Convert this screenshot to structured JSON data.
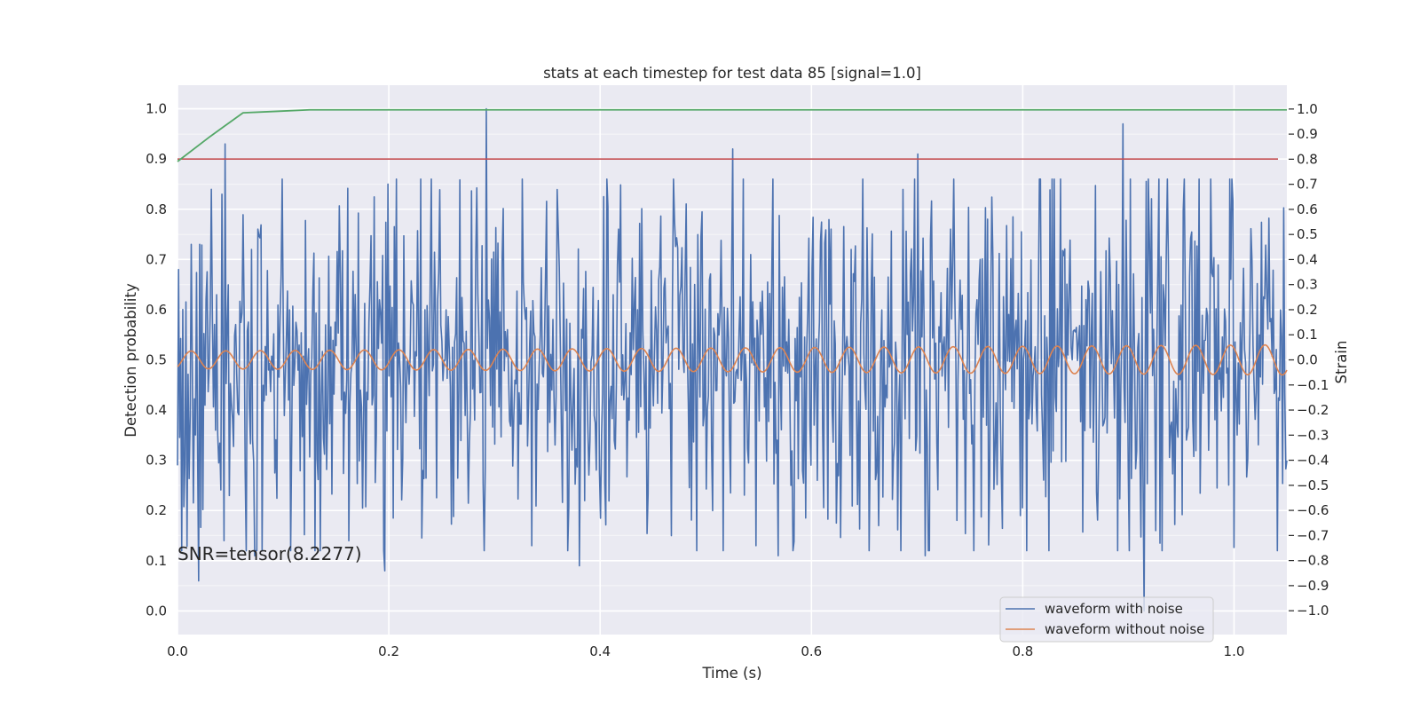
{
  "chart_data": {
    "type": "line",
    "title": "stats at each timestep for test data 85 [signal=1.0]",
    "xlabel": "Time (s)",
    "ylabel": "Detection probability",
    "y2label": "Strain",
    "xlim": [
      0.0,
      1.05
    ],
    "ylim": [
      -0.047,
      1.047
    ],
    "y2lim": [
      -1.095,
      1.095
    ],
    "xticks": [
      "0.0",
      "0.2",
      "0.4",
      "0.6",
      "0.8",
      "1.0"
    ],
    "yticks": [
      "0.0",
      "0.1",
      "0.2",
      "0.3",
      "0.4",
      "0.5",
      "0.6",
      "0.7",
      "0.8",
      "0.9",
      "1.0"
    ],
    "y2ticks": [
      "−1.0",
      "−0.9",
      "−0.8",
      "−0.7",
      "−0.6",
      "−0.5",
      "−0.4",
      "−0.3",
      "−0.2",
      "−0.1",
      "0.0",
      "0.1",
      "0.2",
      "0.3",
      "0.4",
      "0.5",
      "0.6",
      "0.7",
      "0.8",
      "0.9",
      "1.0"
    ],
    "grid": true,
    "legend_position": "lower-right",
    "annotation": "SNR=tensor(8.2277)",
    "threshold": {
      "y": 0.9,
      "color": "#c44e52"
    },
    "detection_curve": {
      "color": "#55a868",
      "x": [
        0.0,
        0.031,
        0.062,
        0.094,
        0.125,
        0.156,
        0.188,
        0.25,
        0.5,
        0.75,
        1.0,
        1.05
      ],
      "y": [
        0.895,
        0.945,
        0.992,
        0.995,
        0.998,
        0.998,
        0.998,
        0.998,
        0.998,
        0.998,
        0.998,
        0.998
      ]
    },
    "series": [
      {
        "name": "waveform with noise",
        "color": "#4c72b0",
        "sample_count": 1050,
        "seed": 85,
        "noise_std": 0.19,
        "spikes": [
          {
            "x": 0.001,
            "y": 0.68
          },
          {
            "x": 0.02,
            "y": 0.06
          },
          {
            "x": 0.036,
            "y": 0.36
          },
          {
            "x": 0.042,
            "y": 0.83
          },
          {
            "x": 0.044,
            "y": 0.14
          },
          {
            "x": 0.045,
            "y": 0.93
          },
          {
            "x": 0.07,
            "y": 0.72
          },
          {
            "x": 0.073,
            "y": 0.11
          },
          {
            "x": 0.162,
            "y": 0.14
          },
          {
            "x": 0.196,
            "y": 0.08
          },
          {
            "x": 0.199,
            "y": 0.85
          },
          {
            "x": 0.24,
            "y": 0.86
          },
          {
            "x": 0.292,
            "y": 1.0
          },
          {
            "x": 0.335,
            "y": 0.13
          },
          {
            "x": 0.38,
            "y": 0.09
          },
          {
            "x": 0.467,
            "y": 0.15
          },
          {
            "x": 0.526,
            "y": 0.92
          },
          {
            "x": 0.548,
            "y": 0.13
          },
          {
            "x": 0.569,
            "y": 0.11
          },
          {
            "x": 0.664,
            "y": 0.17
          },
          {
            "x": 0.701,
            "y": 0.91
          },
          {
            "x": 0.708,
            "y": 0.11
          },
          {
            "x": 0.798,
            "y": 0.19
          },
          {
            "x": 0.895,
            "y": 0.97
          },
          {
            "x": 0.915,
            "y": 0.0
          },
          {
            "x": 0.926,
            "y": 0.16
          }
        ]
      },
      {
        "name": "waveform without noise",
        "color": "#dd8452",
        "center": 0.0,
        "frequency_hz": 30.5,
        "amplitude_start": 0.035,
        "amplitude_end": 0.06
      }
    ]
  }
}
